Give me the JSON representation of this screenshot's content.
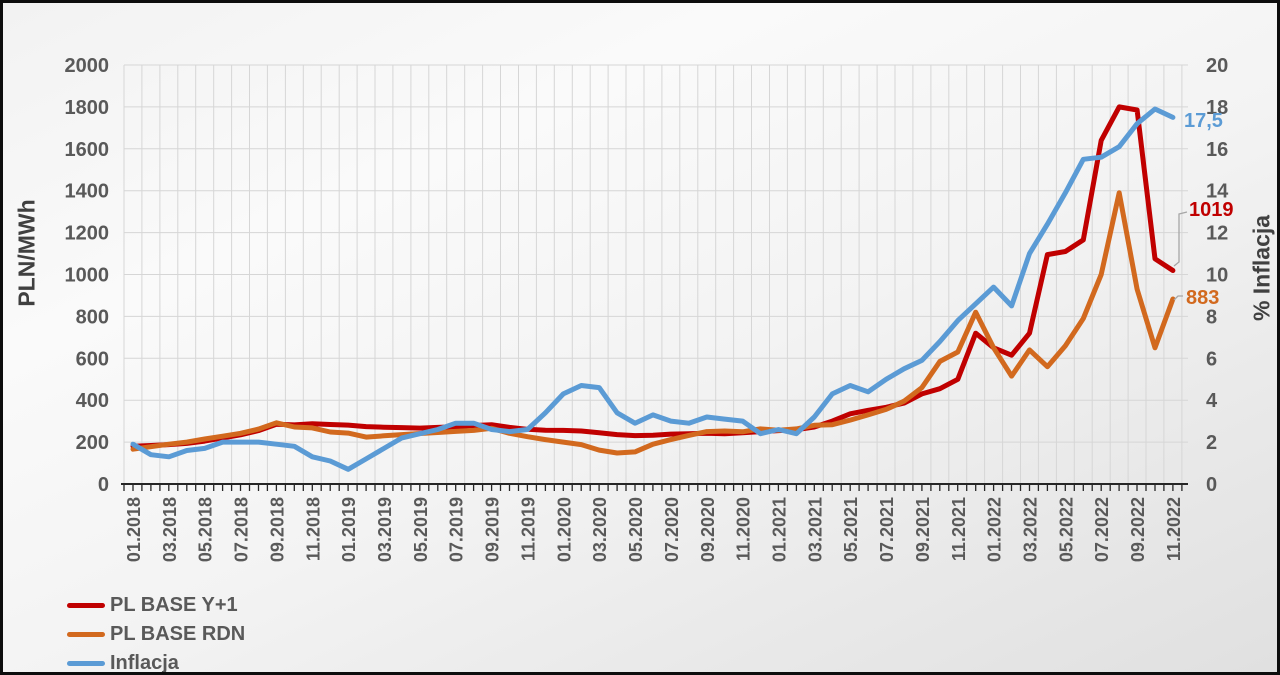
{
  "chart_data": {
    "type": "line",
    "categories": [
      "01.2018",
      "02.2018",
      "03.2018",
      "04.2018",
      "05.2018",
      "06.2018",
      "07.2018",
      "08.2018",
      "09.2018",
      "10.2018",
      "11.2018",
      "12.2018",
      "01.2019",
      "02.2019",
      "03.2019",
      "04.2019",
      "05.2019",
      "06.2019",
      "07.2019",
      "08.2019",
      "09.2019",
      "10.2019",
      "11.2019",
      "12.2019",
      "01.2020",
      "02.2020",
      "03.2020",
      "04.2020",
      "05.2020",
      "06.2020",
      "07.2020",
      "08.2020",
      "09.2020",
      "10.2020",
      "11.2020",
      "12.2020",
      "01.2021",
      "02.2021",
      "03.2021",
      "04.2021",
      "05.2021",
      "06.2021",
      "07.2021",
      "08.2021",
      "09.2021",
      "10.2021",
      "11.2021",
      "12.2021",
      "01.2022",
      "02.2022",
      "03.2022",
      "04.2022",
      "05.2022",
      "06.2022",
      "07.2022",
      "08.2022",
      "09.2022",
      "10.2022",
      "11.2022"
    ],
    "x_label_step": 2,
    "left_axis": {
      "title": "PLN/MWh",
      "min": 0,
      "max": 2000,
      "step": 200
    },
    "right_axis": {
      "title": "% Inflacja",
      "min": 0,
      "max": 20,
      "step": 2
    },
    "grid": {
      "horizontal": true,
      "vertical_monthly": true
    },
    "series": [
      {
        "name": "PL BASE Y+1",
        "color": "#C00000",
        "axis": "left",
        "values": [
          180,
          184,
          188,
          194,
          205,
          220,
          235,
          255,
          285,
          282,
          288,
          284,
          281,
          274,
          271,
          269,
          267,
          270,
          273,
          279,
          283,
          270,
          261,
          257,
          256,
          253,
          245,
          236,
          231,
          233,
          238,
          240,
          242,
          240,
          245,
          250,
          255,
          259,
          272,
          300,
          335,
          352,
          366,
          386,
          430,
          455,
          500,
          720,
          650,
          615,
          720,
          1095,
          1110,
          1165,
          1640,
          1800,
          1785,
          1075,
          1019
        ]
      },
      {
        "name": "PL BASE RDN",
        "color": "#D2691E",
        "axis": "left",
        "values": [
          166,
          178,
          190,
          200,
          215,
          228,
          242,
          262,
          292,
          272,
          268,
          248,
          243,
          224,
          230,
          236,
          241,
          246,
          251,
          256,
          266,
          242,
          226,
          212,
          200,
          188,
          162,
          148,
          153,
          190,
          212,
          232,
          250,
          253,
          249,
          263,
          257,
          263,
          280,
          283,
          305,
          330,
          356,
          395,
          460,
          585,
          630,
          820,
          650,
          515,
          640,
          560,
          660,
          790,
          1000,
          1390,
          930,
          650,
          883
        ]
      },
      {
        "name": "Inflacja",
        "color": "#5B9BD5",
        "axis": "right",
        "values": [
          1.9,
          1.4,
          1.3,
          1.6,
          1.7,
          2.0,
          2.0,
          2.0,
          1.9,
          1.8,
          1.3,
          1.1,
          0.7,
          1.2,
          1.7,
          2.2,
          2.4,
          2.6,
          2.9,
          2.9,
          2.6,
          2.5,
          2.6,
          3.4,
          4.3,
          4.7,
          4.6,
          3.4,
          2.9,
          3.3,
          3.0,
          2.9,
          3.2,
          3.1,
          3.0,
          2.4,
          2.6,
          2.4,
          3.2,
          4.3,
          4.7,
          4.4,
          5.0,
          5.5,
          5.9,
          6.8,
          7.8,
          8.6,
          9.4,
          8.5,
          11.0,
          12.4,
          13.9,
          15.5,
          15.6,
          16.1,
          17.2,
          17.9,
          17.5
        ]
      }
    ],
    "end_labels": [
      {
        "series": "PL BASE Y+1",
        "text": "1019"
      },
      {
        "series": "PL BASE RDN",
        "text": "883"
      },
      {
        "series": "Inflacja",
        "text": "17,5"
      }
    ],
    "legend_position": "bottom-left",
    "colors": {
      "tick_label": "#595959",
      "axis_title": "#404040",
      "gridline": "#d6d6d6",
      "axis_line": "#262626",
      "leader_line": "#a6a6a6"
    }
  }
}
